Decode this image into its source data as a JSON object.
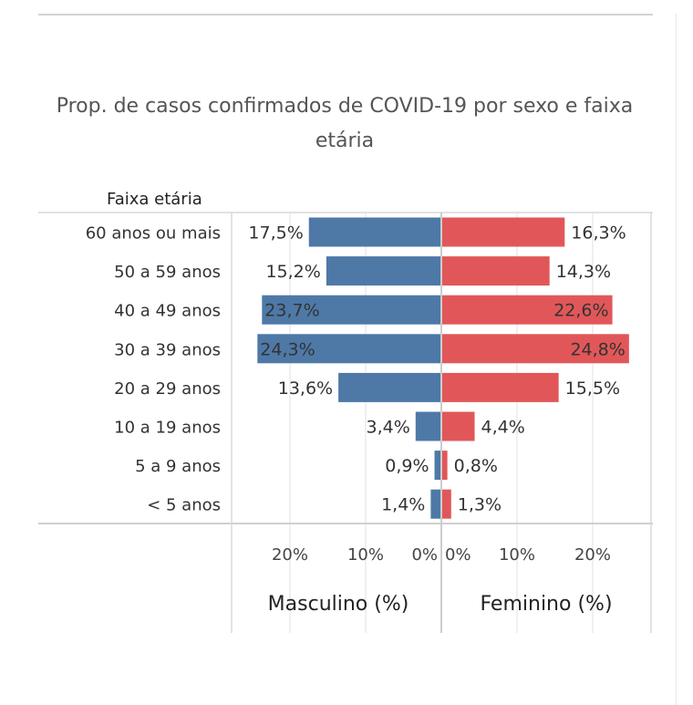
{
  "chart_data": {
    "type": "bar",
    "title": "Prop. de casos confirmados de COVID-19 por sexo e faixa etária",
    "row_header": "Faixa etária",
    "categories": [
      "60 anos ou mais",
      "50 a 59 anos",
      "40 a 49 anos",
      "30 a 39 anos",
      "20 a 29 anos",
      "10 a 19 anos",
      "5 a 9 anos",
      "< 5 anos"
    ],
    "series": [
      {
        "name": "Masculino (%)",
        "values": [
          17.5,
          15.2,
          23.7,
          24.3,
          13.6,
          3.4,
          0.9,
          1.4
        ],
        "labels": [
          "17,5%",
          "15,2%",
          "23,7%",
          "24,3%",
          "13,6%",
          "3,4%",
          "0,9%",
          "1,4%"
        ],
        "color": "#4e79a7"
      },
      {
        "name": "Feminino (%)",
        "values": [
          16.3,
          14.3,
          22.6,
          24.8,
          15.5,
          4.4,
          0.8,
          1.3
        ],
        "labels": [
          "16,3%",
          "14,3%",
          "22,6%",
          "24,8%",
          "15,5%",
          "4,4%",
          "0,8%",
          "1,3%"
        ],
        "color": "#e15759"
      }
    ],
    "xlim": [
      0,
      28
    ],
    "xticks_left": [
      "20%",
      "10%",
      "0%"
    ],
    "xticks_right": [
      "0%",
      "10%",
      "20%"
    ],
    "xtick_values": [
      20,
      10,
      0
    ],
    "grid": true
  }
}
